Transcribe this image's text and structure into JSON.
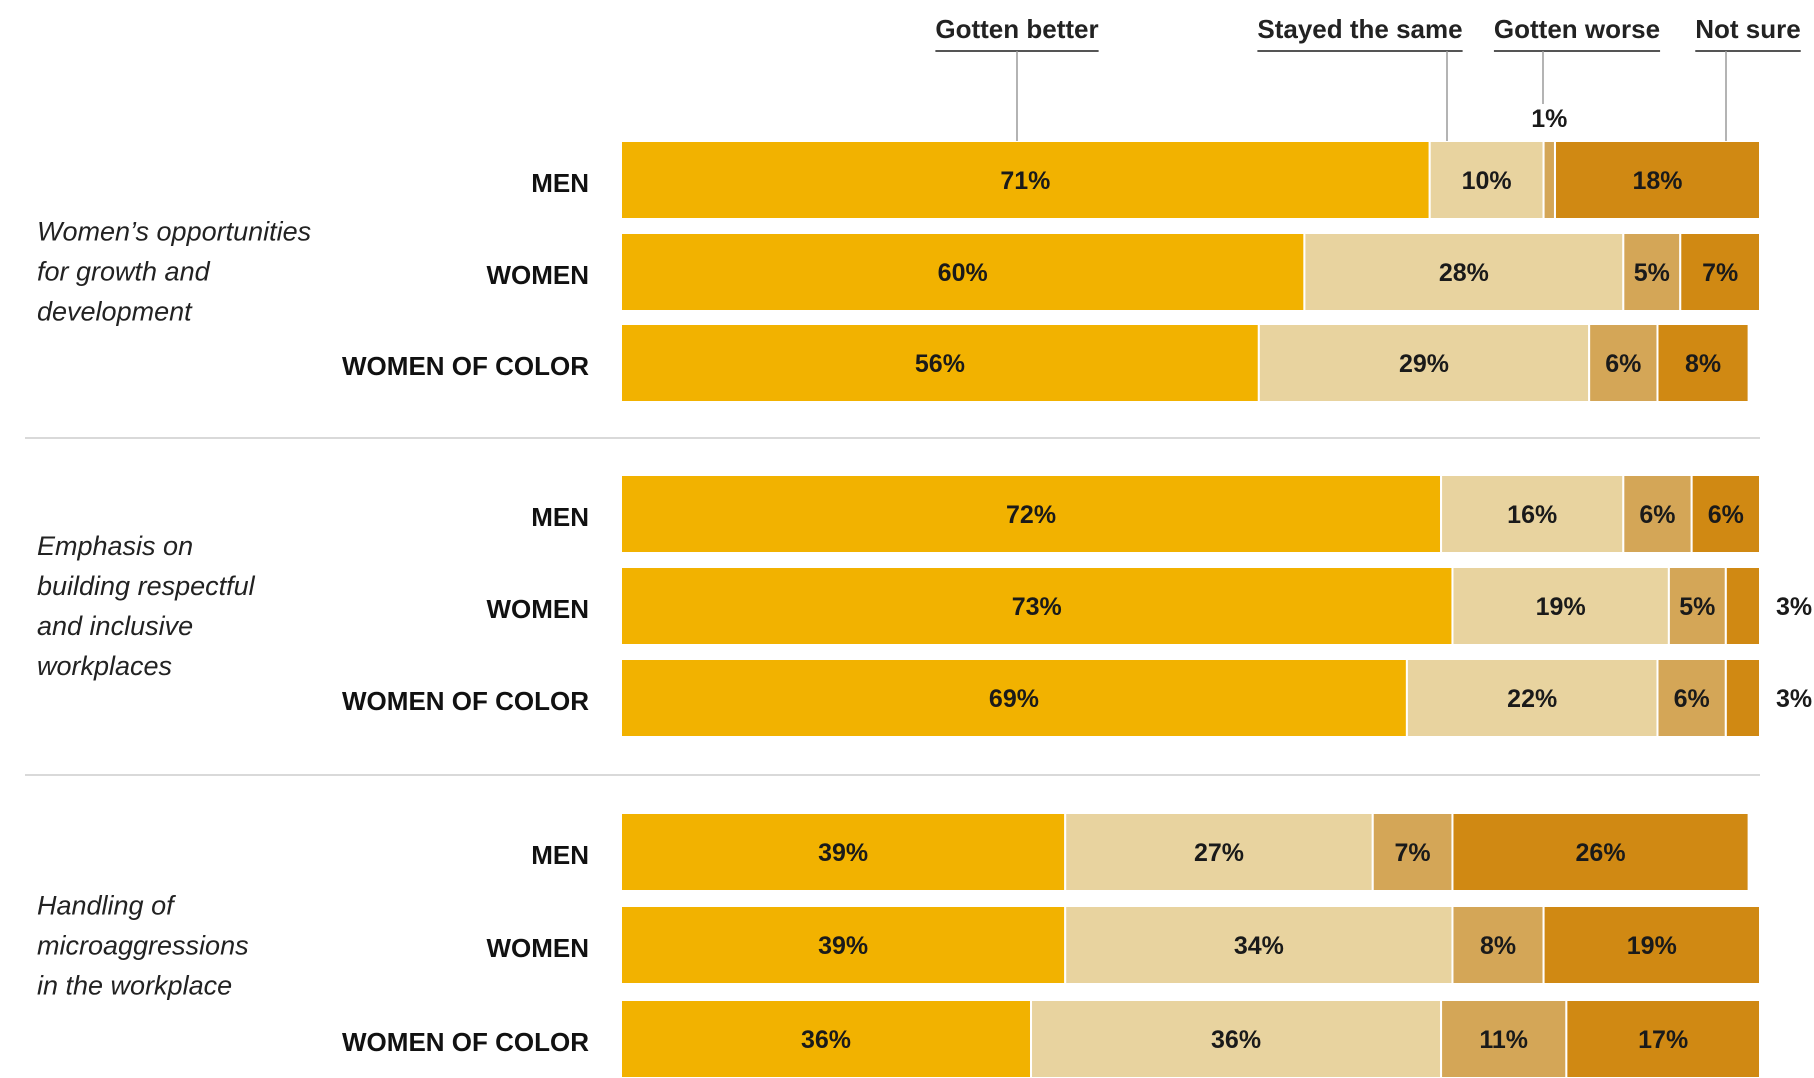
{
  "chart_data": {
    "type": "bar",
    "orientation": "horizontal",
    "stacked": true,
    "legend": [
      "Gotten better",
      "Stayed the same",
      "Gotten worse",
      "Not sure"
    ],
    "legend_placement": "top",
    "colors": [
      "#F2B200",
      "#E8D39F",
      "#D4A657",
      "#D08913"
    ],
    "xlim": [
      0,
      100
    ],
    "sections": [
      {
        "label": "Women’s opportunities for growth and development",
        "label_lines": [
          "Women’s opportunities",
          "for growth and",
          "development"
        ],
        "rows": [
          {
            "group": "MEN",
            "values": [
              71,
              10,
              1,
              18
            ],
            "labels": [
              "71%",
              "10%",
              "1%",
              "18%"
            ]
          },
          {
            "group": "WOMEN",
            "values": [
              60,
              28,
              5,
              7
            ],
            "labels": [
              "60%",
              "28%",
              "5%",
              "7%"
            ]
          },
          {
            "group": "WOMEN OF COLOR",
            "values": [
              56,
              29,
              6,
              8
            ],
            "labels": [
              "56%",
              "29%",
              "6%",
              "8%"
            ]
          }
        ]
      },
      {
        "label": "Emphasis on building respectful and inclusive workplaces",
        "label_lines": [
          "Emphasis on",
          "building respectful",
          "and inclusive",
          "workplaces"
        ],
        "rows": [
          {
            "group": "MEN",
            "values": [
              72,
              16,
              6,
              6
            ],
            "labels": [
              "72%",
              "16%",
              "6%",
              "6%"
            ]
          },
          {
            "group": "WOMEN",
            "values": [
              73,
              19,
              5,
              3
            ],
            "labels": [
              "73%",
              "19%",
              "5%",
              "3%"
            ]
          },
          {
            "group": "WOMEN OF COLOR",
            "values": [
              69,
              22,
              6,
              3
            ],
            "labels": [
              "69%",
              "22%",
              "6%",
              "3%"
            ]
          }
        ]
      },
      {
        "label": "Handling of microaggressions in the workplace",
        "label_lines": [
          "Handling of",
          "microaggressions",
          "in the workplace"
        ],
        "rows": [
          {
            "group": "MEN",
            "values": [
              39,
              27,
              7,
              26
            ],
            "labels": [
              "39%",
              "27%",
              "7%",
              "26%"
            ]
          },
          {
            "group": "WOMEN",
            "values": [
              39,
              34,
              8,
              19
            ],
            "labels": [
              "39%",
              "34%",
              "8%",
              "19%"
            ]
          },
          {
            "group": "WOMEN OF COLOR",
            "values": [
              36,
              36,
              11,
              17
            ],
            "labels": [
              "36%",
              "36%",
              "11%",
              "17%"
            ]
          }
        ]
      }
    ]
  }
}
